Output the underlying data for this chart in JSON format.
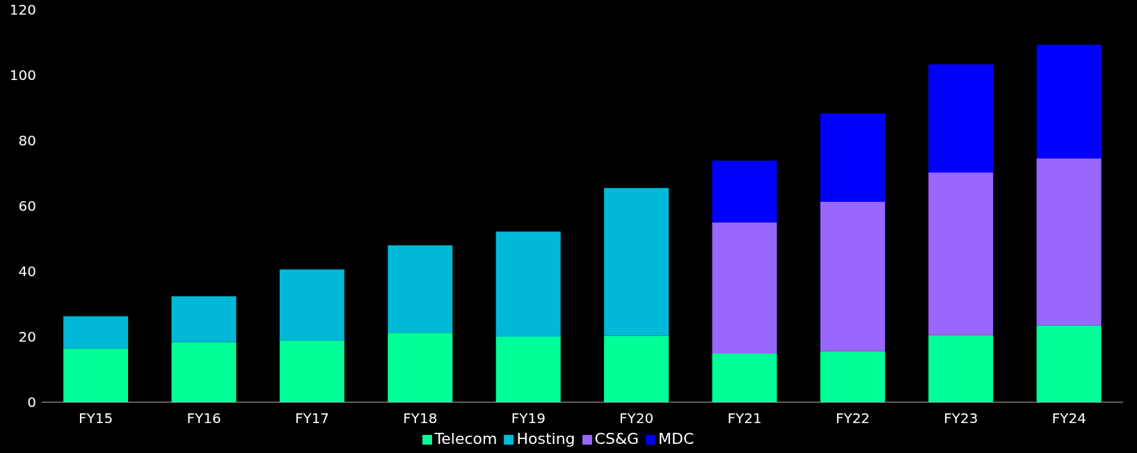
{
  "chart_data": {
    "type": "bar",
    "stacked": true,
    "categories": [
      "FY15",
      "FY16",
      "FY17",
      "FY18",
      "FY19",
      "FY20",
      "FY21",
      "FY22",
      "FY23",
      "FY24"
    ],
    "series": [
      {
        "name": "Telecom",
        "color": "#00ff99",
        "values": [
          16.5,
          18.4,
          18.9,
          21.2,
          20.0,
          20.3,
          14.9,
          15.6,
          20.5,
          23.5
        ]
      },
      {
        "name": "Hosting",
        "color": "#00b8d8",
        "values": [
          9.8,
          14.0,
          21.7,
          26.8,
          32.2,
          45.2,
          null,
          null,
          null,
          null
        ]
      },
      {
        "name": "CS&G",
        "color": "#9966ff",
        "values": [
          null,
          null,
          null,
          null,
          null,
          null,
          40.1,
          45.7,
          49.7,
          51.1
        ]
      },
      {
        "name": "MDC",
        "color": "#0000ff",
        "values": [
          null,
          null,
          null,
          null,
          null,
          null,
          18.9,
          27.0,
          33.1,
          34.7
        ]
      }
    ],
    "ylim": [
      0,
      120
    ],
    "yticks": [
      0,
      20,
      40,
      60,
      80,
      100,
      120
    ],
    "grid": false,
    "legend": "bottom"
  }
}
